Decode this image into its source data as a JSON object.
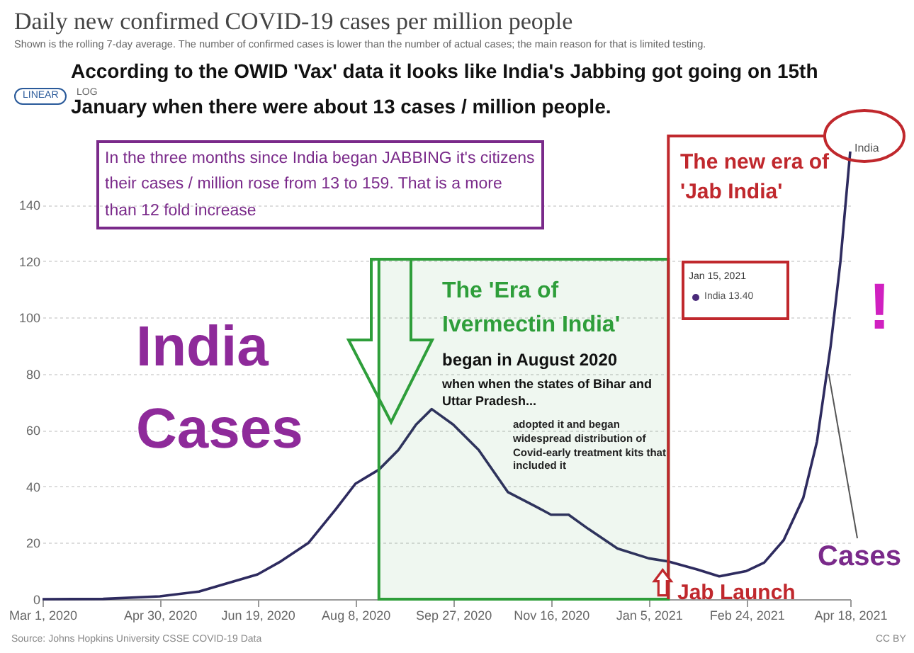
{
  "chart_data": {
    "type": "line",
    "title": "Daily new confirmed COVID-19 cases per million people",
    "subtitle": "Shown is the rolling 7-day average. The number of confirmed cases is lower than the number of actual cases; the main reason for that is limited testing.",
    "x": [
      "2020-03-01",
      "2020-04-01",
      "2020-04-30",
      "2020-05-20",
      "2020-06-19",
      "2020-07-01",
      "2020-07-15",
      "2020-07-29",
      "2020-08-08",
      "2020-08-20",
      "2020-08-30",
      "2020-09-08",
      "2020-09-16",
      "2020-09-27",
      "2020-10-10",
      "2020-10-25",
      "2020-11-08",
      "2020-11-16",
      "2020-11-25",
      "2020-12-05",
      "2020-12-20",
      "2021-01-05",
      "2021-01-15",
      "2021-01-30",
      "2021-02-10",
      "2021-02-24",
      "2021-03-05",
      "2021-03-15",
      "2021-03-25",
      "2021-04-01",
      "2021-04-08",
      "2021-04-13",
      "2021-04-18"
    ],
    "series": [
      {
        "name": "India",
        "color": "#2e2b5f",
        "values": [
          0,
          0.1,
          1,
          2.7,
          8.8,
          13.5,
          20,
          32,
          41,
          46,
          53,
          62,
          67.5,
          62,
          53,
          38,
          33,
          30,
          30,
          25,
          18,
          14.5,
          13.4,
          10.5,
          8.1,
          10,
          13,
          21,
          36,
          56,
          90,
          120,
          159
        ]
      }
    ],
    "xlim": [
      "2020-03-01",
      "2021-04-18"
    ],
    "xticks": [
      {
        "value": "2020-03-01",
        "label": "Mar 1, 2020"
      },
      {
        "value": "2020-04-30",
        "label": "Apr 30, 2020"
      },
      {
        "value": "2020-06-19",
        "label": "Jun 19, 2020"
      },
      {
        "value": "2020-08-08",
        "label": "Aug 8, 2020"
      },
      {
        "value": "2020-09-27",
        "label": "Sep 27, 2020"
      },
      {
        "value": "2020-11-16",
        "label": "Nov 16, 2020"
      },
      {
        "value": "2021-01-05",
        "label": "Jan 5, 2021"
      },
      {
        "value": "2021-02-24",
        "label": "Feb 24, 2021"
      },
      {
        "value": "2021-04-18",
        "label": "Apr 18, 2021"
      }
    ],
    "ylim": [
      0,
      165
    ],
    "yticks": [
      0,
      20,
      40,
      60,
      80,
      100,
      120,
      140
    ],
    "grid": "y",
    "ref_lines": [
      {
        "axis": "x",
        "value": "2021-01-15",
        "color": "#c0282d"
      }
    ],
    "bands": [
      {
        "axis": "x",
        "from": "2020-08-20",
        "to": "2021-01-15",
        "color": "#2e9e3a"
      }
    ],
    "annotations": [
      "LINEAR",
      "LOG",
      "According to the OWID 'Vax' data it looks like India's Jabbing got going on 15th January when there were about 13 cases / million people.",
      "In the three months since India began JABBING it's citizens their cases / million rose from 13 to 159. That is a more than 12 fold increase",
      "The new era of 'Jab India'",
      "Jan 15, 2021",
      "India 13.40",
      "The 'Era of Ivermectin India'",
      "began in August 2020",
      "when when the states of Bihar and Uttar Pradesh...",
      "adopted it and began widespread distribution of Covid-early treatment kits that included it",
      "India Cases",
      "!",
      {
        "text": "Cases",
        "x": "2021-04-07",
        "y": 80
      },
      {
        "text": "Jab Launch",
        "x": "2021-01-15",
        "y": 13.4
      },
      "Source: Johns Hopkins University CSSE COVID-19 Data",
      "CC BY"
    ]
  }
}
